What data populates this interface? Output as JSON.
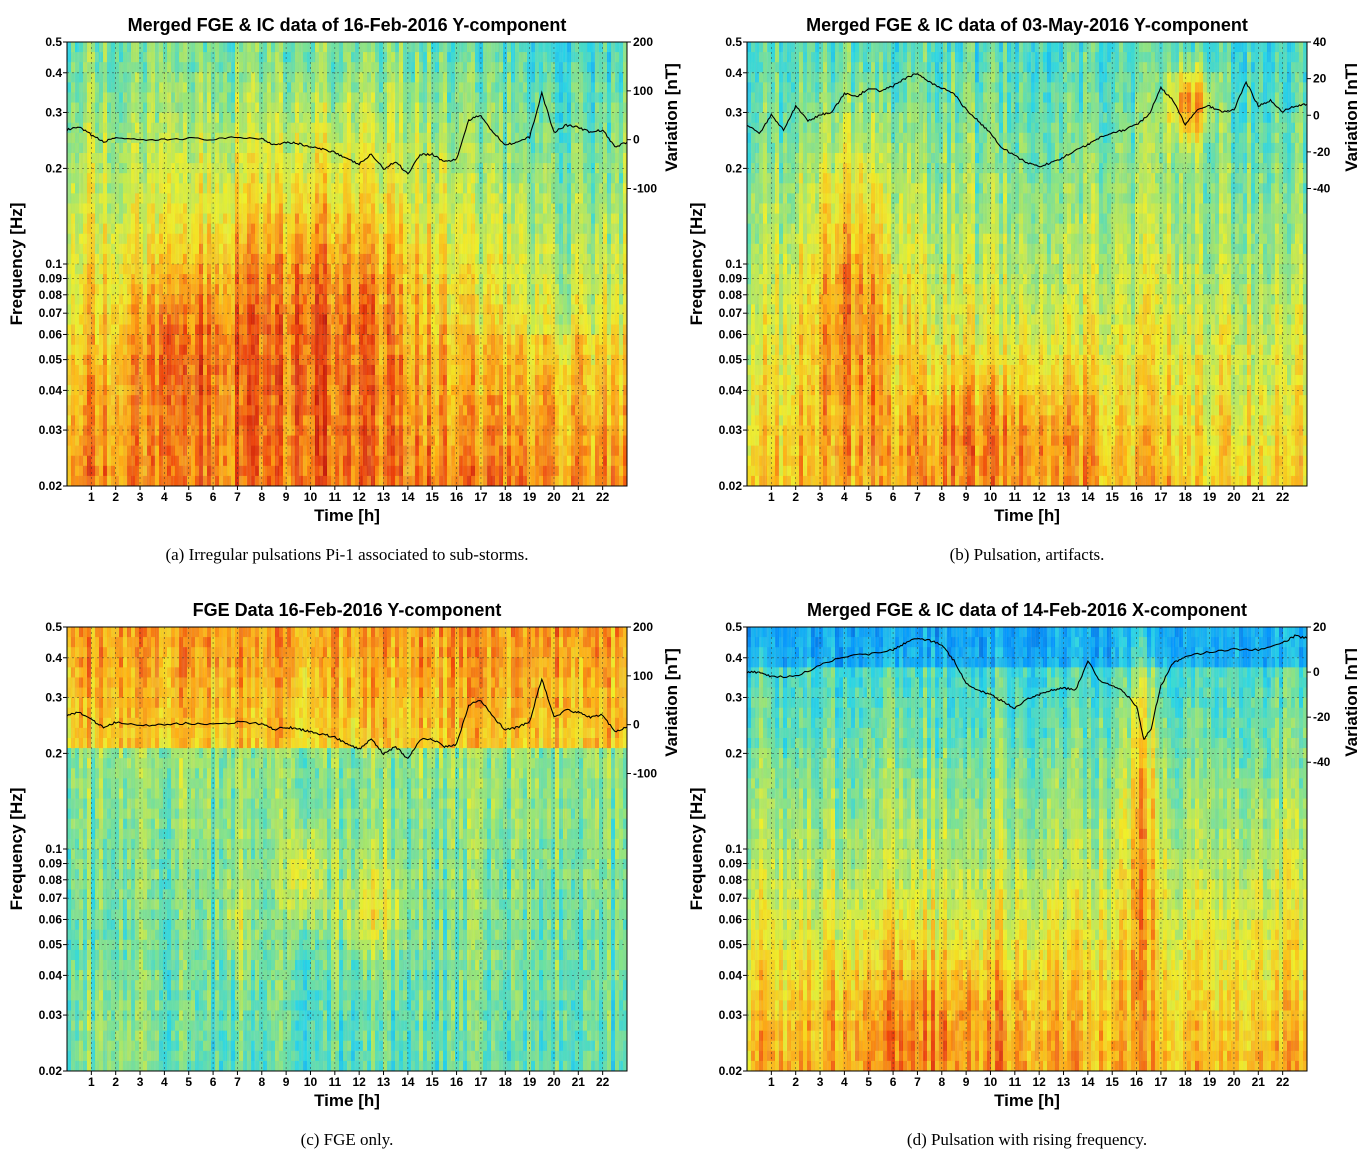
{
  "figure": {
    "panels": [
      {
        "title": "Merged FGE & IC data of 16-Feb-2016  Y-component",
        "caption": "(a) Irregular pulsations Pi-1 associated to sub-storms.",
        "xlabel": "Time [h]",
        "ylabel": "Frequency [Hz]",
        "ylabel_right": "Variation [nT]",
        "right_ticks": [
          "200",
          "100",
          "0",
          "-100"
        ],
        "profile": "a"
      },
      {
        "title": "Merged FGE & IC data of 03-May-2016  Y-component",
        "caption": "(b) Pulsation, artifacts.",
        "xlabel": "Time [h]",
        "ylabel": "Frequency [Hz]",
        "ylabel_right": "Variation [nT]",
        "right_ticks": [
          "40",
          "20",
          "0",
          "-20",
          "-40"
        ],
        "profile": "b"
      },
      {
        "title": "FGE Data 16-Feb-2016  Y-component",
        "caption": "(c) FGE only.",
        "xlabel": "Time [h]",
        "ylabel": "Frequency [Hz]",
        "ylabel_right": "Variation [nT]",
        "right_ticks": [
          "200",
          "100",
          "0",
          "-100"
        ],
        "profile": "c"
      },
      {
        "title": "Merged FGE & IC data of 14-Feb-2016  X-component",
        "caption": "(d) Pulsation with rising frequency.",
        "xlabel": "Time [h]",
        "ylabel": "Frequency [Hz]",
        "ylabel_right": "Variation [nT]",
        "right_ticks": [
          "20",
          "0",
          "-20",
          "-40"
        ],
        "profile": "d"
      }
    ],
    "y_tick_labels": [
      "0.5",
      "0.4",
      "0.3",
      "0.2",
      "0.1",
      "0.09",
      "0.08",
      "0.07",
      "0.06",
      "0.05",
      "0.04",
      "0.03",
      "0.02"
    ],
    "x_tick_labels": [
      "1",
      "2",
      "3",
      "4",
      "5",
      "6",
      "7",
      "8",
      "9",
      "10",
      "11",
      "12",
      "13",
      "14",
      "15",
      "16",
      "17",
      "18",
      "19",
      "20",
      "21",
      "22"
    ]
  },
  "chart_data": [
    {
      "type": "heatmap",
      "title": "Merged FGE & IC data of 16-Feb-2016  Y-component",
      "xlabel": "Time [h]",
      "ylabel": "Frequency [Hz]",
      "ylabel_right": "Variation [nT]",
      "xlim": [
        0,
        23
      ],
      "ylim": [
        0.02,
        0.5
      ],
      "y_scale": "log",
      "y2lim": [
        -100,
        200
      ],
      "x_ticks": [
        1,
        2,
        3,
        4,
        5,
        6,
        7,
        8,
        9,
        10,
        11,
        12,
        13,
        14,
        15,
        16,
        17,
        18,
        19,
        20,
        21,
        22
      ],
      "y_ticks": [
        0.02,
        0.03,
        0.04,
        0.05,
        0.06,
        0.07,
        0.08,
        0.09,
        0.1,
        0.2,
        0.3,
        0.4,
        0.5
      ],
      "y2_ticks": [
        -100,
        0,
        100,
        200
      ],
      "grid": true,
      "variation_trace": {
        "x": [
          0,
          0.5,
          1,
          1.5,
          2,
          3,
          4,
          5,
          6,
          7,
          8,
          8.5,
          9,
          9.5,
          10,
          10.5,
          11,
          11.5,
          12,
          12.5,
          13,
          13.5,
          14,
          14.5,
          15,
          15.5,
          16,
          16.5,
          17,
          17.5,
          18,
          18.5,
          19,
          19.5,
          20,
          20.5,
          21,
          21.5,
          22,
          22.5,
          23
        ],
        "y": [
          20,
          25,
          10,
          -5,
          5,
          -2,
          0,
          3,
          0,
          5,
          2,
          -10,
          -5,
          -8,
          -15,
          -20,
          -25,
          -40,
          -50,
          -30,
          -60,
          -45,
          -70,
          -30,
          -30,
          -45,
          -40,
          40,
          50,
          15,
          -10,
          -5,
          5,
          95,
          15,
          30,
          25,
          15,
          20,
          -15,
          -5
        ]
      }
    },
    {
      "type": "heatmap",
      "title": "Merged FGE & IC data of 03-May-2016  Y-component",
      "xlabel": "Time [h]",
      "ylabel": "Frequency [Hz]",
      "ylabel_right": "Variation [nT]",
      "xlim": [
        0,
        23
      ],
      "ylim": [
        0.02,
        0.5
      ],
      "y_scale": "log",
      "y2lim": [
        -40,
        40
      ],
      "x_ticks": [
        1,
        2,
        3,
        4,
        5,
        6,
        7,
        8,
        9,
        10,
        11,
        12,
        13,
        14,
        15,
        16,
        17,
        18,
        19,
        20,
        21,
        22
      ],
      "y_ticks": [
        0.02,
        0.03,
        0.04,
        0.05,
        0.06,
        0.07,
        0.08,
        0.09,
        0.1,
        0.2,
        0.3,
        0.4,
        0.5
      ],
      "y2_ticks": [
        -40,
        -20,
        0,
        20,
        40
      ],
      "grid": true,
      "variation_trace": {
        "x": [
          0,
          0.5,
          1,
          1.5,
          2,
          2.5,
          3,
          3.5,
          4,
          4.5,
          5,
          5.5,
          6,
          6.5,
          7,
          7.5,
          8,
          8.5,
          9,
          9.5,
          10,
          10.5,
          11,
          11.5,
          12,
          12.5,
          13,
          13.5,
          14,
          14.5,
          15,
          15.5,
          16,
          16.5,
          17,
          17.5,
          18,
          18.5,
          19,
          19.5,
          20,
          20.5,
          21,
          21.5,
          22,
          22.5,
          23
        ],
        "y": [
          -5,
          -10,
          0,
          -8,
          5,
          -3,
          0,
          2,
          12,
          10,
          15,
          13,
          16,
          20,
          23,
          18,
          15,
          12,
          3,
          -3,
          -10,
          -18,
          -22,
          -26,
          -28,
          -26,
          -23,
          -19,
          -16,
          -12,
          -10,
          -8,
          -5,
          0,
          15,
          8,
          -5,
          3,
          5,
          2,
          3,
          18,
          5,
          8,
          2,
          5,
          6
        ]
      }
    },
    {
      "type": "heatmap",
      "title": "FGE Data 16-Feb-2016  Y-component",
      "xlabel": "Time [h]",
      "ylabel": "Frequency [Hz]",
      "ylabel_right": "Variation [nT]",
      "xlim": [
        0,
        23
      ],
      "ylim": [
        0.02,
        0.5
      ],
      "y_scale": "log",
      "y2lim": [
        -100,
        200
      ],
      "x_ticks": [
        1,
        2,
        3,
        4,
        5,
        6,
        7,
        8,
        9,
        10,
        11,
        12,
        13,
        14,
        15,
        16,
        17,
        18,
        19,
        20,
        21,
        22
      ],
      "y_ticks": [
        0.02,
        0.03,
        0.04,
        0.05,
        0.06,
        0.07,
        0.08,
        0.09,
        0.1,
        0.2,
        0.3,
        0.4,
        0.5
      ],
      "y2_ticks": [
        -100,
        0,
        100,
        200
      ],
      "grid": true,
      "variation_trace": {
        "x": [
          0,
          0.5,
          1,
          1.5,
          2,
          3,
          4,
          5,
          6,
          7,
          8,
          8.5,
          9,
          9.5,
          10,
          10.5,
          11,
          11.5,
          12,
          12.5,
          13,
          13.5,
          14,
          14.5,
          15,
          15.5,
          16,
          16.5,
          17,
          17.5,
          18,
          18.5,
          19,
          19.5,
          20,
          20.5,
          21,
          21.5,
          22,
          22.5,
          23
        ],
        "y": [
          20,
          25,
          10,
          -5,
          5,
          -2,
          0,
          3,
          0,
          5,
          2,
          -10,
          -5,
          -8,
          -15,
          -20,
          -25,
          -40,
          -50,
          -30,
          -60,
          -45,
          -70,
          -30,
          -30,
          -45,
          -40,
          40,
          50,
          15,
          -10,
          -5,
          5,
          95,
          15,
          30,
          25,
          15,
          20,
          -15,
          -5
        ]
      }
    },
    {
      "type": "heatmap",
      "title": "Merged FGE & IC data of 14-Feb-2016  X-component",
      "xlabel": "Time [h]",
      "ylabel": "Frequency [Hz]",
      "ylabel_right": "Variation [nT]",
      "xlim": [
        0,
        23
      ],
      "ylim": [
        0.02,
        0.5
      ],
      "y_scale": "log",
      "y2lim": [
        -45,
        20
      ],
      "x_ticks": [
        1,
        2,
        3,
        4,
        5,
        6,
        7,
        8,
        9,
        10,
        11,
        12,
        13,
        14,
        15,
        16,
        17,
        18,
        19,
        20,
        21,
        22
      ],
      "y_ticks": [
        0.02,
        0.03,
        0.04,
        0.05,
        0.06,
        0.07,
        0.08,
        0.09,
        0.1,
        0.2,
        0.3,
        0.4,
        0.5
      ],
      "y2_ticks": [
        -40,
        -20,
        0,
        20
      ],
      "grid": true,
      "variation_trace": {
        "x": [
          0,
          0.5,
          1,
          2,
          3,
          4,
          5,
          6,
          6.5,
          7,
          7.5,
          8,
          8.5,
          9,
          9.5,
          10,
          10.5,
          11,
          11.5,
          12,
          12.5,
          13,
          13.5,
          14,
          14.5,
          15,
          15.5,
          16,
          16.3,
          16.6,
          17,
          17.5,
          18,
          19,
          20,
          21,
          22,
          22.5,
          23
        ],
        "y": [
          0,
          0,
          -2,
          -2,
          3,
          7,
          8,
          10,
          13,
          15,
          14,
          12,
          5,
          -5,
          -8,
          -10,
          -13,
          -16,
          -12,
          -10,
          -8,
          -7,
          -8,
          5,
          -4,
          -6,
          -9,
          -15,
          -30,
          -25,
          -6,
          4,
          7,
          9,
          10,
          10,
          13,
          16,
          15
        ]
      }
    }
  ]
}
